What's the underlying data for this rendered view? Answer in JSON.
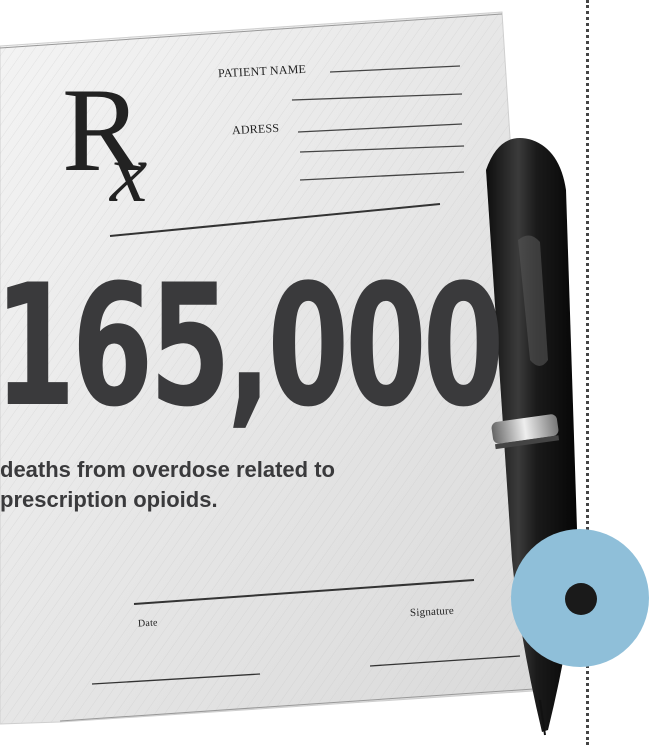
{
  "prescription": {
    "rx_symbol_r": "R",
    "rx_symbol_x": "x",
    "patient_name_label": "PATIENT NAME",
    "address_label": "ADRESS",
    "date_label": "Date",
    "signature_label": "Signature"
  },
  "stat": {
    "number": "165,000",
    "caption": "deaths from overdose related to prescription opioids."
  },
  "colors": {
    "number_text": "#3a3a3c",
    "badge": "#8fbfd9",
    "badge_dot": "#1a1a1a",
    "pen_body": "#1f1f1f"
  },
  "icons": {
    "pen": "pen-icon",
    "badge": "circle-badge-icon"
  }
}
